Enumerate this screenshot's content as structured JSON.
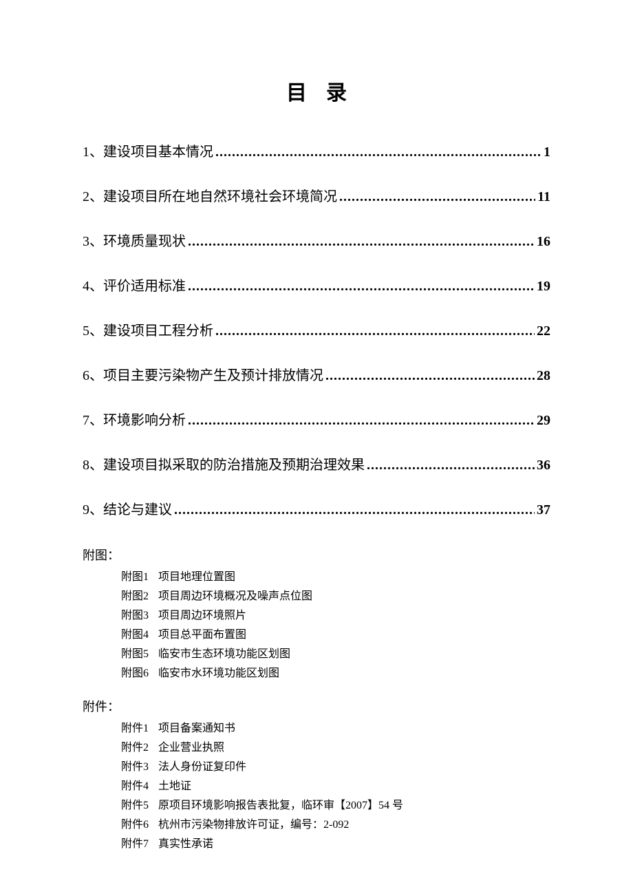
{
  "title": "目录",
  "toc": [
    {
      "num": "1、",
      "label": "建设项目基本情况",
      "page": "1"
    },
    {
      "num": "2、",
      "label": "建设项目所在地自然环境社会环境简况",
      "page": "11"
    },
    {
      "num": "3、",
      "label": "环境质量现状",
      "page": "16"
    },
    {
      "num": "4、",
      "label": "评价适用标准",
      "page": "19"
    },
    {
      "num": "5、",
      "label": "建设项目工程分析",
      "page": "22"
    },
    {
      "num": "6、",
      "label": "项目主要污染物产生及预计排放情况",
      "page": " 28"
    },
    {
      "num": "7、",
      "label": "环境影响分析",
      "page": "29"
    },
    {
      "num": "8、",
      "label": "建设项目拟采取的防治措施及预期治理效果",
      "page": "36"
    },
    {
      "num": "9、",
      "label": "结论与建议",
      "page": "37"
    }
  ],
  "figures_header": "附图：",
  "figures": [
    {
      "idx": "附图",
      "n": "1",
      "desc": "项目地理位置图"
    },
    {
      "idx": "附图",
      "n": "2",
      "desc": "项目周边环境概况及噪声点位图"
    },
    {
      "idx": "附图",
      "n": "3",
      "desc": "项目周边环境照片"
    },
    {
      "idx": "附图",
      "n": "4",
      "desc": "项目总平面布置图"
    },
    {
      "idx": "附图",
      "n": "5",
      "desc": "临安市生态环境功能区划图"
    },
    {
      "idx": "附图",
      "n": "6",
      "desc": "临安市水环境功能区划图"
    }
  ],
  "attachments_header": "附件：",
  "attachments": [
    {
      "idx": "附件",
      "n": "1",
      "desc": "项目备案通知书"
    },
    {
      "idx": "附件",
      "n": "2",
      "desc": "企业营业执照"
    },
    {
      "idx": "附件",
      "n": "3",
      "desc": "法人身份证复印件"
    },
    {
      "idx": "附件",
      "n": "4",
      "desc": "土地证"
    },
    {
      "idx": "附件",
      "n": "5",
      "desc": "原项目环境影响报告表批复，临环审【2007】54 号"
    },
    {
      "idx": "附件",
      "n": "6",
      "desc": "杭州市污染物排放许可证，编号：2-092"
    },
    {
      "idx": "附件",
      "n": "7",
      "desc": "真实性承诺"
    }
  ]
}
